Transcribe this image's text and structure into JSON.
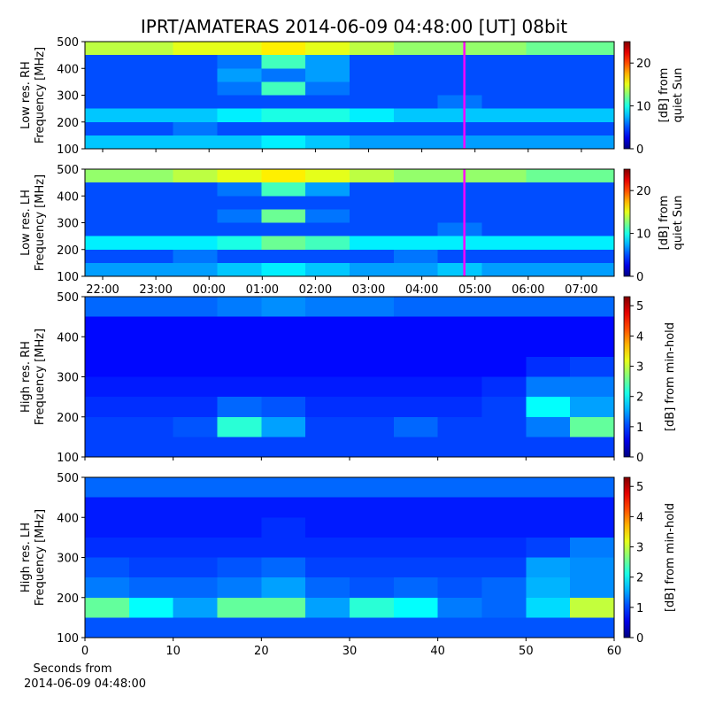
{
  "title": "IPRT/AMATERAS 2014-06-09 04:48:00 [UT]   08bit",
  "xlabel": [
    "Seconds from",
    "2014-06-09 04:48:00"
  ],
  "colormap": "jet",
  "chart_data": [
    {
      "type": "heatmap",
      "ylabel": [
        "Low res. RH",
        "Frequency [MHz]"
      ],
      "xlim": [
        21.667,
        31.617
      ],
      "xticks": [
        {
          "value": 22,
          "label": "22:00"
        },
        {
          "value": 23,
          "label": "23:00"
        },
        {
          "value": 24,
          "label": "00:00"
        },
        {
          "value": 25,
          "label": "01:00"
        },
        {
          "value": 26,
          "label": "02:00"
        },
        {
          "value": 27,
          "label": "03:00"
        },
        {
          "value": 28,
          "label": "04:00"
        },
        {
          "value": 29,
          "label": "05:00"
        },
        {
          "value": 30,
          "label": "06:00"
        },
        {
          "value": 31,
          "label": "07:00"
        }
      ],
      "show_xticklabels": false,
      "ylim": [
        100,
        500
      ],
      "yticks": [
        100,
        200,
        300,
        400,
        500
      ],
      "cursor_x": 28.8,
      "cursor_color": "#ff00ff",
      "z": [
        [
          14,
          14,
          15,
          15,
          16,
          15,
          14,
          13,
          13,
          13,
          12,
          12
        ],
        [
          5,
          5,
          5,
          6,
          11,
          7,
          5,
          5,
          5,
          5,
          5,
          5
        ],
        [
          5,
          5,
          5,
          7,
          6,
          7,
          5,
          5,
          5,
          5,
          5,
          5
        ],
        [
          5,
          5,
          5,
          6,
          11,
          6,
          5,
          5,
          5,
          5,
          5,
          5
        ],
        [
          5,
          5,
          5,
          5,
          5,
          5,
          5,
          5,
          6,
          5,
          5,
          5
        ],
        [
          8,
          8,
          8,
          9,
          10,
          10,
          9,
          8,
          8,
          8,
          8,
          8
        ],
        [
          5,
          5,
          6,
          5,
          5,
          5,
          5,
          5,
          5,
          5,
          5,
          5
        ],
        [
          8,
          8,
          8,
          8,
          9,
          8,
          7,
          7,
          7,
          7,
          7,
          7
        ]
      ],
      "colorbar": {
        "label": [
          "[dB] from",
          "quiet Sun"
        ],
        "lim": [
          0,
          25
        ],
        "ticks": [
          0,
          10,
          20
        ]
      }
    },
    {
      "type": "heatmap",
      "ylabel": [
        "Low res. LH",
        "Frequency [MHz]"
      ],
      "xlim": [
        21.667,
        31.617
      ],
      "xticks": [
        {
          "value": 22,
          "label": "22:00"
        },
        {
          "value": 23,
          "label": "23:00"
        },
        {
          "value": 24,
          "label": "00:00"
        },
        {
          "value": 25,
          "label": "01:00"
        },
        {
          "value": 26,
          "label": "02:00"
        },
        {
          "value": 27,
          "label": "03:00"
        },
        {
          "value": 28,
          "label": "04:00"
        },
        {
          "value": 29,
          "label": "05:00"
        },
        {
          "value": 30,
          "label": "06:00"
        },
        {
          "value": 31,
          "label": "07:00"
        }
      ],
      "show_xticklabels": true,
      "ylim": [
        100,
        500
      ],
      "yticks": [
        100,
        200,
        300,
        400,
        500
      ],
      "cursor_x": 28.8,
      "cursor_color": "#ff00ff",
      "z": [
        [
          13,
          13,
          14,
          15,
          16,
          15,
          14,
          13,
          13,
          13,
          12,
          12
        ],
        [
          5,
          5,
          5,
          6,
          11,
          7,
          5,
          5,
          5,
          5,
          5,
          5
        ],
        [
          5,
          5,
          5,
          5,
          5,
          5,
          5,
          5,
          5,
          5,
          5,
          5
        ],
        [
          5,
          5,
          5,
          6,
          12,
          6,
          5,
          5,
          5,
          5,
          5,
          5
        ],
        [
          5,
          5,
          5,
          5,
          5,
          5,
          5,
          5,
          6,
          5,
          5,
          5
        ],
        [
          9,
          9,
          9,
          10,
          12,
          11,
          9,
          9,
          9,
          9,
          9,
          9
        ],
        [
          5,
          5,
          6,
          5,
          5,
          5,
          5,
          6,
          5,
          5,
          5,
          5
        ],
        [
          7,
          7,
          7,
          8,
          9,
          8,
          7,
          7,
          8,
          7,
          7,
          7
        ]
      ],
      "colorbar": {
        "label": [
          "[dB] from",
          "quiet Sun"
        ],
        "lim": [
          0,
          25
        ],
        "ticks": [
          0,
          10,
          20
        ]
      }
    },
    {
      "type": "heatmap",
      "ylabel": [
        "High res. RH",
        "Frequency [MHz]"
      ],
      "xlim": [
        0,
        60
      ],
      "xticks": [
        0,
        10,
        20,
        30,
        40,
        50,
        60
      ],
      "show_xticklabels": false,
      "ylim": [
        100,
        500
      ],
      "yticks": [
        100,
        200,
        300,
        400,
        500
      ],
      "z": [
        [
          1.2,
          1.2,
          1.2,
          1.3,
          1.4,
          1.3,
          1.3,
          1.2,
          1.2,
          1.2,
          1.2,
          1.2
        ],
        [
          0.7,
          0.7,
          0.7,
          0.7,
          0.7,
          0.7,
          0.7,
          0.7,
          0.7,
          0.7,
          0.7,
          0.7
        ],
        [
          0.7,
          0.7,
          0.7,
          0.7,
          0.7,
          0.7,
          0.7,
          0.7,
          0.7,
          0.7,
          0.7,
          0.7
        ],
        [
          0.7,
          0.7,
          0.7,
          0.7,
          0.7,
          0.7,
          0.7,
          0.7,
          0.7,
          0.7,
          0.9,
          1.0
        ],
        [
          0.8,
          0.8,
          0.8,
          0.8,
          0.8,
          0.8,
          0.8,
          0.8,
          0.8,
          0.9,
          1.3,
          1.3
        ],
        [
          0.9,
          0.9,
          0.9,
          1.2,
          1.1,
          0.9,
          0.9,
          0.9,
          0.9,
          1.0,
          2.0,
          1.5
        ],
        [
          1.0,
          1.0,
          1.1,
          2.2,
          1.5,
          1.0,
          1.0,
          1.2,
          1.0,
          1.0,
          1.3,
          2.5
        ],
        [
          1.0,
          1.0,
          1.0,
          1.0,
          1.0,
          1.0,
          1.0,
          1.0,
          1.0,
          1.0,
          1.0,
          1.0
        ]
      ],
      "colorbar": {
        "label": [
          "[dB] from min-hold"
        ],
        "lim": [
          0,
          5.3
        ],
        "ticks": [
          0,
          1,
          2,
          3,
          4,
          5
        ]
      }
    },
    {
      "type": "heatmap",
      "ylabel": [
        "High res. LH",
        "Frequency [MHz]"
      ],
      "xlim": [
        0,
        60
      ],
      "xticks": [
        0,
        10,
        20,
        30,
        40,
        50,
        60
      ],
      "show_xticklabels": true,
      "ylim": [
        100,
        500
      ],
      "yticks": [
        100,
        200,
        300,
        400,
        500
      ],
      "z": [
        [
          1.2,
          1.2,
          1.2,
          1.2,
          1.2,
          1.2,
          1.2,
          1.2,
          1.2,
          1.2,
          1.2,
          1.2
        ],
        [
          0.8,
          0.8,
          0.8,
          0.8,
          0.8,
          0.8,
          0.8,
          0.8,
          0.8,
          0.8,
          0.8,
          0.8
        ],
        [
          0.8,
          0.8,
          0.8,
          0.8,
          0.9,
          0.8,
          0.8,
          0.8,
          0.8,
          0.8,
          0.8,
          0.8
        ],
        [
          0.9,
          0.9,
          0.9,
          0.9,
          0.9,
          0.9,
          0.9,
          0.9,
          0.9,
          0.9,
          1.0,
          1.3
        ],
        [
          1.1,
          1.0,
          1.0,
          1.1,
          1.2,
          1.0,
          1.0,
          1.0,
          1.0,
          1.0,
          1.5,
          1.4
        ],
        [
          1.3,
          1.2,
          1.2,
          1.3,
          1.5,
          1.2,
          1.1,
          1.2,
          1.1,
          1.2,
          1.6,
          1.4
        ],
        [
          2.5,
          2.0,
          1.5,
          2.5,
          2.5,
          1.5,
          2.2,
          2.0,
          1.3,
          1.2,
          1.8,
          3.0
        ],
        [
          1.1,
          1.1,
          1.1,
          1.1,
          1.1,
          1.1,
          1.1,
          1.1,
          1.1,
          1.1,
          1.1,
          1.1
        ]
      ],
      "colorbar": {
        "label": [
          "[dB] from min-hold"
        ],
        "lim": [
          0,
          5.3
        ],
        "ticks": [
          0,
          1,
          2,
          3,
          4,
          5
        ]
      }
    }
  ]
}
